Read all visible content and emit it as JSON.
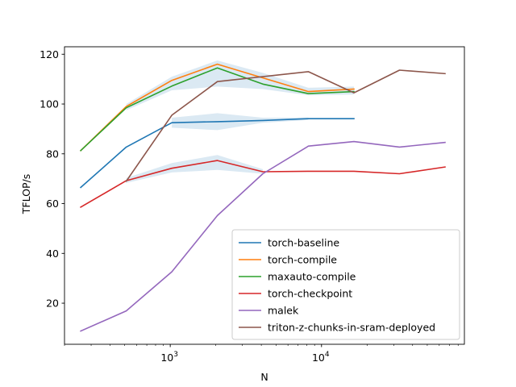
{
  "chart_data": {
    "type": "line",
    "title": "",
    "xlabel": "N",
    "ylabel": "TFLOP/s",
    "xscale": "log",
    "xlim": [
      200,
      88000
    ],
    "ylim": [
      3.5,
      123
    ],
    "grid": false,
    "legend_position": "lower-right",
    "x_major_ticks": [
      {
        "value": 1000,
        "base": "10",
        "exp": "3"
      },
      {
        "value": 10000,
        "base": "10",
        "exp": "4"
      }
    ],
    "y_ticks": [
      20,
      40,
      60,
      80,
      100,
      120
    ],
    "series": [
      {
        "name": "torch-baseline",
        "color": "#1f77b4",
        "points": [
          [
            256,
            66.5
          ],
          [
            512,
            82.7
          ],
          [
            1024,
            92.5
          ],
          [
            2048,
            92.9
          ],
          [
            4096,
            93.4
          ],
          [
            8192,
            94.1
          ],
          [
            16384,
            94.1
          ]
        ],
        "band": [
          [
            1024,
            90.5,
            94.5
          ],
          [
            2048,
            89.5,
            96.3
          ],
          [
            4096,
            92.5,
            94.5
          ],
          [
            8192,
            93.6,
            94.6
          ]
        ]
      },
      {
        "name": "torch-compile",
        "color": "#ff7f0e",
        "points": [
          [
            256,
            81.3
          ],
          [
            512,
            99.0
          ],
          [
            1024,
            109.5
          ],
          [
            2048,
            116.0
          ],
          [
            8192,
            105.0
          ],
          [
            16384,
            106.0
          ]
        ]
      },
      {
        "name": "maxauto-compile",
        "color": "#2ca02c",
        "points": [
          [
            256,
            81.3
          ],
          [
            512,
            98.5
          ],
          [
            1024,
            107.2
          ],
          [
            2048,
            114.5
          ],
          [
            4096,
            108.0
          ],
          [
            8192,
            104.2
          ],
          [
            16384,
            105.0
          ]
        ],
        "band": [
          [
            512,
            97.5,
            100.0
          ],
          [
            1024,
            105.5,
            111.0
          ],
          [
            2048,
            107.0,
            117.5
          ],
          [
            4096,
            106.0,
            112.5
          ],
          [
            8192,
            103.5,
            106.5
          ],
          [
            16384,
            103.8,
            107.0
          ]
        ]
      },
      {
        "name": "torch-checkpoint",
        "color": "#d62728",
        "points": [
          [
            256,
            58.6
          ],
          [
            512,
            69.2
          ],
          [
            1024,
            74.2
          ],
          [
            2048,
            77.3
          ],
          [
            4096,
            72.8
          ],
          [
            8192,
            73.0
          ],
          [
            16384,
            73.0
          ],
          [
            32768,
            72.0
          ],
          [
            65536,
            74.7
          ]
        ],
        "band": [
          [
            512,
            68.3,
            70.3
          ],
          [
            1024,
            72.5,
            76.3
          ],
          [
            2048,
            73.5,
            79.5
          ],
          [
            4096,
            72.0,
            73.8
          ]
        ]
      },
      {
        "name": "malek",
        "color": "#9467bd",
        "points": [
          [
            256,
            8.8
          ],
          [
            512,
            16.9
          ],
          [
            1024,
            32.6
          ],
          [
            2048,
            55.2
          ],
          [
            4096,
            72.0
          ],
          [
            8192,
            83.1
          ],
          [
            16384,
            84.9
          ],
          [
            32768,
            82.7
          ],
          [
            65536,
            84.6
          ]
        ]
      },
      {
        "name": "triton-z-chunks-in-sram-deployed",
        "color": "#8c564b",
        "points": [
          [
            512,
            69.0
          ],
          [
            1024,
            95.5
          ],
          [
            2048,
            109.0
          ],
          [
            8192,
            113.0
          ],
          [
            16384,
            104.5
          ],
          [
            32768,
            113.6
          ],
          [
            65536,
            112.2
          ]
        ]
      }
    ]
  }
}
